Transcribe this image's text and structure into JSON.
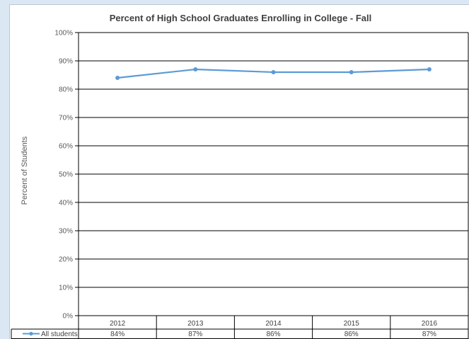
{
  "chart_data": {
    "type": "line",
    "title": "Percent of High School Graduates Enrolling in College - Fall",
    "ylabel": "Percent of Students",
    "xlabel": "",
    "categories": [
      "2012",
      "2013",
      "2014",
      "2015",
      "2016"
    ],
    "y_ticks": [
      "0%",
      "10%",
      "20%",
      "30%",
      "40%",
      "50%",
      "60%",
      "70%",
      "80%",
      "90%",
      "100%"
    ],
    "ylim": [
      0,
      100
    ],
    "grid": true,
    "legend": "data-table",
    "series": [
      {
        "name": "All students",
        "values": [
          84,
          87,
          86,
          86,
          87
        ],
        "labels": [
          "84%",
          "87%",
          "86%",
          "86%",
          "87%"
        ],
        "color": "#5b9bd5"
      }
    ]
  }
}
